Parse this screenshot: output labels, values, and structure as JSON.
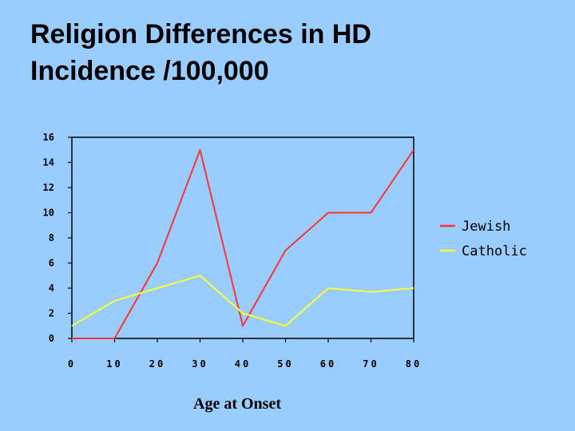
{
  "slide": {
    "title_line1": "Religion Differences in HD",
    "title_line2": "Incidence /100,000",
    "background": "#99ccff"
  },
  "chart_data": {
    "type": "line",
    "title": "",
    "xlabel": "Age at Onset",
    "ylabel": "",
    "x": [
      0,
      10,
      20,
      30,
      40,
      50,
      60,
      70,
      80
    ],
    "xticks": [
      "0",
      "10",
      "20",
      "30",
      "40",
      "50",
      "60",
      "70",
      "80"
    ],
    "yticks": [
      "0",
      "2",
      "4",
      "6",
      "8",
      "10",
      "12",
      "14",
      "16"
    ],
    "xlim": [
      0,
      80
    ],
    "ylim": [
      0,
      16
    ],
    "grid": false,
    "legend_position": "right",
    "series": [
      {
        "name": "Jewish",
        "color": "#ff3333",
        "values": [
          0,
          0,
          6,
          15,
          1,
          7,
          10,
          10,
          15
        ]
      },
      {
        "name": "Catholic",
        "color": "#ffff33",
        "values": [
          1,
          3,
          4,
          5,
          2,
          1,
          4,
          3.7,
          4
        ]
      }
    ]
  }
}
